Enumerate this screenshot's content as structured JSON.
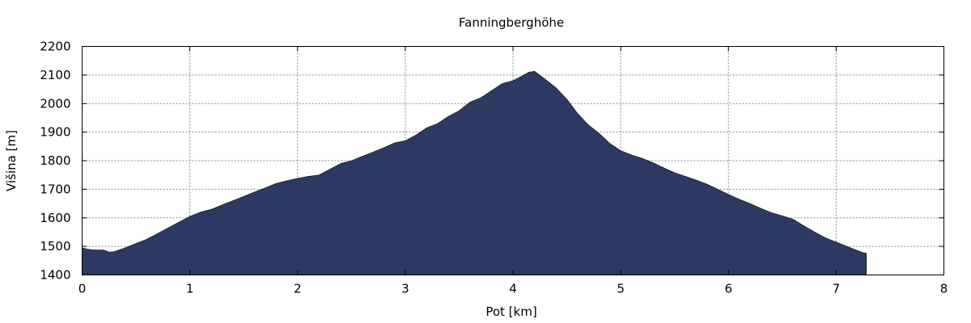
{
  "chart_data": {
    "type": "area",
    "title": "Fanningberghöhe",
    "xlabel": "Pot [km]",
    "ylabel": "Višina [m]",
    "xlim": [
      0,
      8
    ],
    "ylim": [
      1400,
      2200
    ],
    "xticks": [
      "0",
      "1",
      "2",
      "3",
      "4",
      "5",
      "6",
      "7",
      "8"
    ],
    "yticks": [
      "1400",
      "1500",
      "1600",
      "1700",
      "1800",
      "1900",
      "2000",
      "2100",
      "2200"
    ],
    "grid": true,
    "color": "#2c3a63",
    "series": [
      {
        "x": [
          0,
          0.05,
          0.1,
          0.2,
          0.25,
          0.3,
          0.4,
          0.5,
          0.6,
          0.7,
          0.8,
          0.9,
          1.0,
          1.1,
          1.2,
          1.3,
          1.4,
          1.5,
          1.6,
          1.7,
          1.8,
          1.9,
          2.0,
          2.1,
          2.2,
          2.3,
          2.4,
          2.5,
          2.6,
          2.7,
          2.8,
          2.9,
          3.0,
          3.1,
          3.2,
          3.3,
          3.4,
          3.5,
          3.6,
          3.7,
          3.8,
          3.9,
          4.0,
          4.1,
          4.15,
          4.2,
          4.3,
          4.4,
          4.5,
          4.6,
          4.7,
          4.8,
          4.9,
          5.0,
          5.1,
          5.2,
          5.3,
          5.4,
          5.5,
          5.6,
          5.7,
          5.8,
          5.9,
          6.0,
          6.1,
          6.2,
          6.3,
          6.4,
          6.5,
          6.6,
          6.7,
          6.8,
          6.9,
          7.0,
          7.1,
          7.2,
          7.25,
          7.28
        ],
        "y": [
          1495,
          1490,
          1488,
          1487,
          1480,
          1482,
          1495,
          1510,
          1525,
          1545,
          1565,
          1585,
          1605,
          1620,
          1630,
          1645,
          1660,
          1675,
          1690,
          1705,
          1720,
          1730,
          1738,
          1745,
          1750,
          1770,
          1790,
          1800,
          1815,
          1830,
          1845,
          1862,
          1870,
          1890,
          1915,
          1930,
          1955,
          1975,
          2005,
          2020,
          2045,
          2070,
          2080,
          2100,
          2110,
          2113,
          2085,
          2055,
          2015,
          1965,
          1925,
          1895,
          1860,
          1835,
          1820,
          1808,
          1793,
          1775,
          1758,
          1745,
          1732,
          1718,
          1700,
          1682,
          1665,
          1650,
          1633,
          1618,
          1607,
          1595,
          1572,
          1550,
          1530,
          1515,
          1500,
          1485,
          1478,
          1476
        ]
      }
    ]
  }
}
